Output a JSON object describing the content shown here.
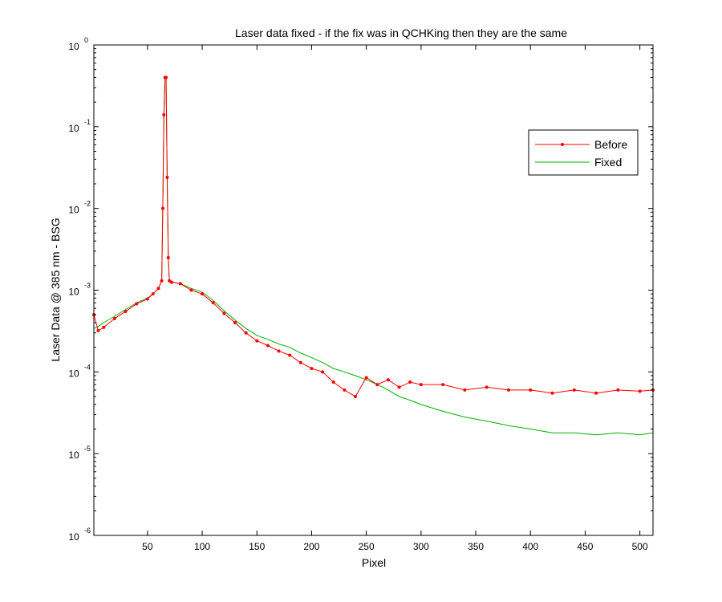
{
  "chart_data": {
    "type": "line",
    "title": "Laser data fixed - if the fix was in QCHKing then they are the same",
    "xlabel": "Pixel",
    "ylabel": "Laser Data @ 385 nm - BSG",
    "xlim": [
      1,
      512
    ],
    "ylim": [
      1e-06,
      1
    ],
    "yscale": "log",
    "grid": false,
    "legend_position": "upper-right",
    "x_ticks": [
      50,
      100,
      150,
      200,
      250,
      300,
      350,
      400,
      450,
      500
    ],
    "y_ticks": [
      {
        "base": "10",
        "exp": "-6",
        "value": 1e-06
      },
      {
        "base": "10",
        "exp": "-5",
        "value": 1e-05
      },
      {
        "base": "10",
        "exp": "-4",
        "value": 0.0001
      },
      {
        "base": "10",
        "exp": "-3",
        "value": 0.001
      },
      {
        "base": "10",
        "exp": "-2",
        "value": 0.01
      },
      {
        "base": "10",
        "exp": "-1",
        "value": 0.1
      },
      {
        "base": "10",
        "exp": "0",
        "value": 1
      }
    ],
    "series": [
      {
        "name": "Before",
        "color": "#ff0000",
        "marker": "dot",
        "x": [
          1,
          5,
          10,
          20,
          30,
          40,
          50,
          55,
          60,
          63,
          64,
          65,
          66,
          67,
          68,
          69,
          70,
          72,
          80,
          90,
          100,
          110,
          120,
          130,
          140,
          150,
          160,
          170,
          180,
          190,
          200,
          210,
          220,
          230,
          240,
          250,
          260,
          270,
          280,
          290,
          300,
          320,
          340,
          360,
          380,
          400,
          420,
          440,
          460,
          480,
          500,
          512
        ],
        "y": [
          0.0005,
          0.00032,
          0.00035,
          0.00045,
          0.00055,
          0.00068,
          0.00078,
          0.0009,
          0.00105,
          0.0013,
          0.01,
          0.14,
          0.4,
          0.4,
          0.024,
          0.0025,
          0.0013,
          0.00125,
          0.0012,
          0.001,
          0.0009,
          0.0007,
          0.00052,
          0.0004,
          0.0003,
          0.00024,
          0.00021,
          0.00018,
          0.00016,
          0.00013,
          0.00011,
          0.0001,
          7.5e-05,
          6e-05,
          5e-05,
          8.5e-05,
          7e-05,
          8e-05,
          6.5e-05,
          7.5e-05,
          7e-05,
          7e-05,
          6e-05,
          6.5e-05,
          6e-05,
          6e-05,
          5.5e-05,
          6e-05,
          5.5e-05,
          6e-05,
          5.8e-05,
          6e-05
        ]
      },
      {
        "name": "Fixed",
        "color": "#00b000",
        "marker": "none",
        "x": [
          1,
          5,
          10,
          20,
          30,
          40,
          50,
          55,
          60,
          63,
          64,
          65,
          66,
          67,
          68,
          69,
          70,
          72,
          80,
          90,
          100,
          110,
          120,
          130,
          140,
          150,
          160,
          170,
          180,
          190,
          200,
          210,
          220,
          230,
          240,
          250,
          260,
          270,
          280,
          290,
          300,
          320,
          340,
          360,
          380,
          400,
          420,
          440,
          460,
          480,
          500,
          512
        ],
        "y": [
          0.00034,
          0.00036,
          0.0004,
          0.00048,
          0.00058,
          0.0007,
          0.0008,
          0.0009,
          0.00105,
          0.0013,
          0.01,
          0.14,
          0.4,
          0.4,
          0.024,
          0.0025,
          0.0013,
          0.00125,
          0.0012,
          0.00105,
          0.00095,
          0.00075,
          0.00056,
          0.00043,
          0.00034,
          0.00028,
          0.00025,
          0.00022,
          0.0002,
          0.00017,
          0.00015,
          0.00013,
          0.00011,
          0.0001,
          9e-05,
          8e-05,
          7e-05,
          6e-05,
          5e-05,
          4.5e-05,
          4e-05,
          3.3e-05,
          2.8e-05,
          2.5e-05,
          2.2e-05,
          2e-05,
          1.8e-05,
          1.8e-05,
          1.7e-05,
          1.8e-05,
          1.7e-05,
          1.8e-05
        ]
      }
    ]
  }
}
